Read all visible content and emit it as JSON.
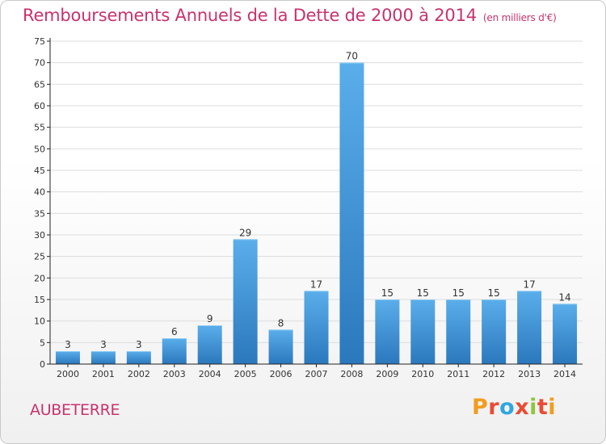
{
  "header": {
    "title": "Remboursements Annuels de la Dette de 2000 à 2014",
    "subtitle": "(en milliers d'€)"
  },
  "footer": {
    "commune": "AUBETERRE",
    "logo_text": "Proxiti"
  },
  "colors": {
    "title": "#c8326e",
    "bar_top": "#5aaeea",
    "bar_bottom": "#2b78bd",
    "grid": "#dddddd",
    "axis": "#222222",
    "logo_letters": [
      "#f39c1f",
      "#e94b35",
      "#2ea7e0",
      "#e94b35",
      "#8cc63f",
      "#e94b35",
      "#f39c1f"
    ]
  },
  "chart_data": {
    "type": "bar",
    "title": "Remboursements Annuels de la Dette de 2000 à 2014",
    "subtitle": "(en milliers d'€)",
    "xlabel": "",
    "ylabel": "",
    "categories": [
      "2000",
      "2001",
      "2002",
      "2003",
      "2004",
      "2005",
      "2006",
      "2007",
      "2008",
      "2009",
      "2010",
      "2011",
      "2012",
      "2013",
      "2014"
    ],
    "values": [
      3,
      3,
      3,
      6,
      9,
      29,
      8,
      17,
      70,
      15,
      15,
      15,
      15,
      17,
      14
    ],
    "ylim": [
      0,
      75
    ],
    "yticks": [
      0,
      5,
      10,
      15,
      20,
      25,
      30,
      35,
      40,
      45,
      50,
      55,
      60,
      65,
      70,
      75
    ],
    "grid": true,
    "legend": "none"
  }
}
